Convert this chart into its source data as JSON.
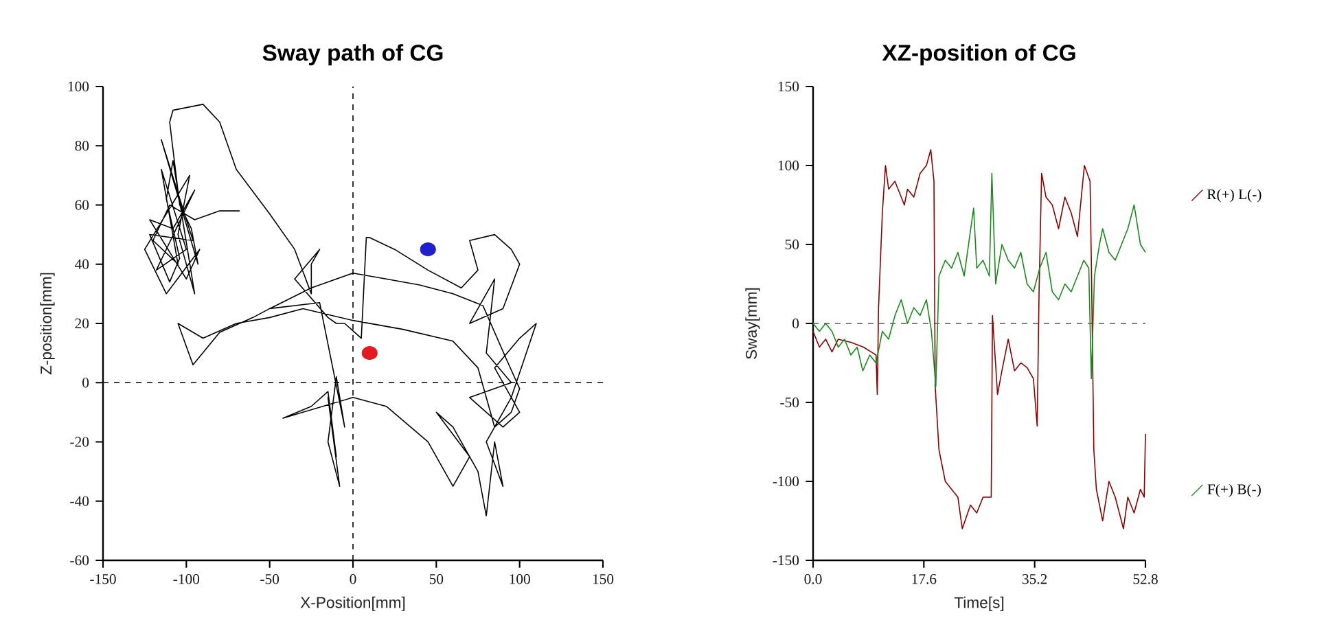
{
  "chart_data": [
    {
      "type": "line",
      "title": "Sway path of CG",
      "xlabel": "X-Position[mm]",
      "ylabel": "Z-position[mm]",
      "xlim": [
        -150,
        150
      ],
      "ylim": [
        -60,
        100
      ],
      "xticks": [
        -150,
        -100,
        -50,
        0,
        50,
        100,
        150
      ],
      "yticks": [
        -60,
        -40,
        -20,
        0,
        20,
        40,
        60,
        80,
        100
      ],
      "ref_lines": [
        {
          "axis": "x",
          "value": 0,
          "line_style": "dashed",
          "color": "#000000"
        },
        {
          "axis": "y",
          "value": 0,
          "line_style": "dashed",
          "color": "#000000"
        }
      ],
      "series": [
        {
          "type": "line",
          "color": "#000000",
          "line_style": "solid",
          "x": [
            -68,
            -80,
            -95,
            -110,
            -120,
            -105,
            -115,
            -100,
            -118,
            -95,
            -108,
            -122,
            -100,
            -92,
            -112,
            -125,
            -98,
            -105,
            -95,
            -108,
            -112,
            -104,
            -110,
            -122,
            -96,
            -100,
            -115,
            -93,
            -97,
            -104,
            -110,
            -108,
            -90,
            -80,
            -70,
            -50,
            -35,
            -25,
            -25,
            -20,
            -35,
            -15,
            -10,
            -5,
            5,
            8,
            10,
            25,
            45,
            65,
            75,
            70,
            85,
            95,
            100,
            90,
            70,
            85,
            80,
            95,
            70,
            90,
            100,
            85,
            100,
            110,
            95,
            80,
            90,
            85,
            80,
            75,
            60,
            50,
            70,
            60,
            45,
            20,
            0,
            -30,
            -42,
            -25,
            -15,
            -10,
            -15,
            -8,
            -15,
            -10,
            -5,
            -20,
            -50,
            -60,
            -80,
            -96,
            -105,
            -90,
            -70,
            -50,
            -30,
            0,
            30,
            60,
            75,
            85,
            95,
            100,
            92,
            78,
            60,
            40,
            20,
            0,
            -25,
            -50
          ],
          "values": [
            58,
            58,
            55,
            60,
            48,
            40,
            72,
            45,
            38,
            65,
            52,
            55,
            35,
            45,
            30,
            45,
            70,
            50,
            30,
            75,
            62,
            42,
            34,
            50,
            48,
            55,
            82,
            40,
            52,
            60,
            88,
            92,
            94,
            88,
            72,
            57,
            45,
            30,
            40,
            45,
            35,
            22,
            20,
            20,
            15,
            49,
            49,
            45,
            38,
            32,
            38,
            48,
            50,
            45,
            40,
            25,
            20,
            35,
            10,
            0,
            -5,
            -15,
            -10,
            5,
            15,
            20,
            -5,
            -20,
            -35,
            -20,
            -45,
            -30,
            -15,
            -10,
            -25,
            -35,
            -20,
            -8,
            -5,
            -10,
            -12,
            -8,
            -3,
            -25,
            -5,
            -35,
            -20,
            2,
            -15,
            27,
            25,
            22,
            17,
            6,
            20,
            15,
            20,
            22,
            25,
            21,
            18,
            14,
            5,
            -15,
            -10,
            -2,
            8,
            26,
            30,
            33,
            35,
            37,
            32,
            25
          ]
        },
        {
          "type": "scatter",
          "color": "#e41a1c",
          "marker": "circle",
          "x": [
            10
          ],
          "values": [
            10
          ]
        },
        {
          "type": "scatter",
          "color": "#1f1fcc",
          "marker": "circle",
          "x": [
            45
          ],
          "values": [
            45
          ]
        }
      ]
    },
    {
      "type": "line",
      "title": "XZ-position of CG",
      "xlabel": "Time[s]",
      "ylabel": "Sway[mm]",
      "xlim": [
        0,
        52.8
      ],
      "ylim": [
        -150,
        150
      ],
      "xticks": [
        {
          "value": 0,
          "label": "0.0"
        },
        17.6,
        35.2,
        52.8
      ],
      "yticks": [
        -150,
        -100,
        -50,
        0,
        50,
        100,
        150
      ],
      "legend": "right",
      "ref_lines": [
        {
          "axis": "y",
          "value": 0,
          "line_style": "dashed",
          "color": "#555555"
        }
      ],
      "series": [
        {
          "name": "R(+) L(-)",
          "color": "#8b0000",
          "x": [
            0,
            1,
            2,
            3,
            4,
            6,
            8,
            10,
            10.2,
            10.4,
            11,
            11.5,
            12,
            13,
            14,
            14.5,
            15,
            16,
            17,
            18,
            18.7,
            19.2,
            19.4,
            20,
            21,
            22,
            23,
            23.7,
            25,
            26,
            27,
            28.3,
            28.5,
            29.3,
            30,
            31,
            32,
            33,
            34,
            35,
            35.6,
            35.9,
            36.3,
            37,
            38,
            39,
            40,
            41,
            42,
            43.1,
            44,
            44.2,
            44.6,
            45,
            46,
            47,
            48,
            49.3,
            50,
            51,
            52,
            52.6,
            52.8
          ],
          "values": [
            -5,
            -15,
            -10,
            -18,
            -10,
            -12,
            -15,
            -20,
            -45,
            10,
            70,
            100,
            85,
            90,
            80,
            75,
            85,
            80,
            95,
            100,
            110,
            90,
            -40,
            -80,
            -100,
            -105,
            -110,
            -130,
            -115,
            -120,
            -110,
            -110,
            5,
            -45,
            -30,
            -10,
            -30,
            -25,
            -28,
            -35,
            -65,
            20,
            95,
            80,
            75,
            60,
            80,
            70,
            55,
            100,
            90,
            40,
            -80,
            -105,
            -125,
            -100,
            -110,
            -130,
            -110,
            -120,
            -105,
            -110,
            -70
          ]
        },
        {
          "name": "F(+) B(-)",
          "color": "#1a8a1a",
          "x": [
            0,
            1,
            2,
            3,
            4,
            5,
            6,
            7,
            7.9,
            9,
            10,
            11,
            12,
            13,
            14,
            15,
            16,
            17,
            18,
            18.8,
            19.5,
            20,
            21,
            22,
            23,
            24,
            25.5,
            26,
            27,
            28,
            28.4,
            29,
            30,
            31,
            32,
            33,
            34,
            35,
            36,
            37,
            38,
            39,
            40,
            41,
            42,
            43,
            43.8,
            44.2,
            44.7,
            45.5,
            46,
            47,
            48,
            49,
            50,
            51,
            52,
            52.8
          ],
          "values": [
            0,
            -5,
            0,
            -5,
            -15,
            -10,
            -20,
            -15,
            -30,
            -20,
            -25,
            -5,
            -10,
            5,
            15,
            0,
            10,
            5,
            15,
            -5,
            -40,
            30,
            40,
            35,
            45,
            30,
            73,
            35,
            40,
            30,
            95,
            25,
            50,
            40,
            35,
            45,
            25,
            20,
            35,
            45,
            20,
            15,
            25,
            20,
            30,
            40,
            35,
            -35,
            30,
            50,
            60,
            45,
            40,
            50,
            60,
            75,
            50,
            45
          ]
        }
      ]
    }
  ]
}
